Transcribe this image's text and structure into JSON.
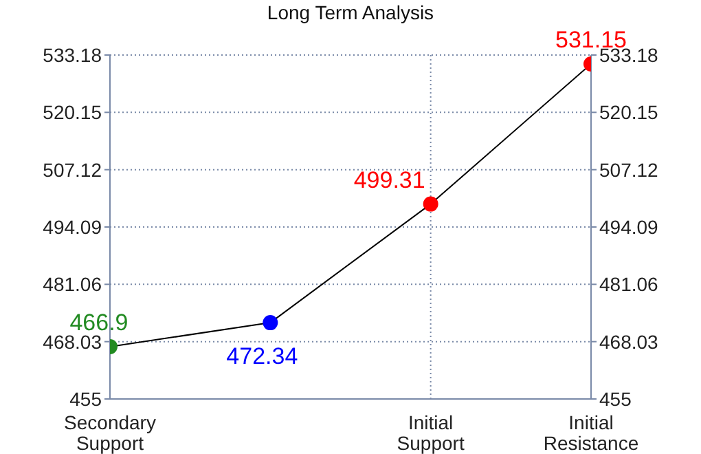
{
  "chart_data": {
    "type": "line",
    "title": "Long Term Analysis",
    "categories": [
      "Secondary Support",
      null,
      "Initial Support",
      "Initial Resistance"
    ],
    "series": [
      {
        "color": "#000000",
        "colors": [
          "#228b22",
          "#0000ff",
          "#ff0000",
          "#ff0000"
        ],
        "values": [
          466.9,
          472.34,
          499.31,
          531.15
        ]
      }
    ],
    "ylim": [
      455,
      533.18
    ],
    "yticks": [
      455,
      468.03,
      481.06,
      494.09,
      507.12,
      520.15,
      533.18
    ],
    "y2lim": [
      455,
      533.18
    ],
    "y2ticks": [
      455,
      468.03,
      481.06,
      494.09,
      507.12,
      520.15,
      533.18
    ],
    "grid": true,
    "marker": "circle",
    "line_style": "solid",
    "data_labels": true
  }
}
